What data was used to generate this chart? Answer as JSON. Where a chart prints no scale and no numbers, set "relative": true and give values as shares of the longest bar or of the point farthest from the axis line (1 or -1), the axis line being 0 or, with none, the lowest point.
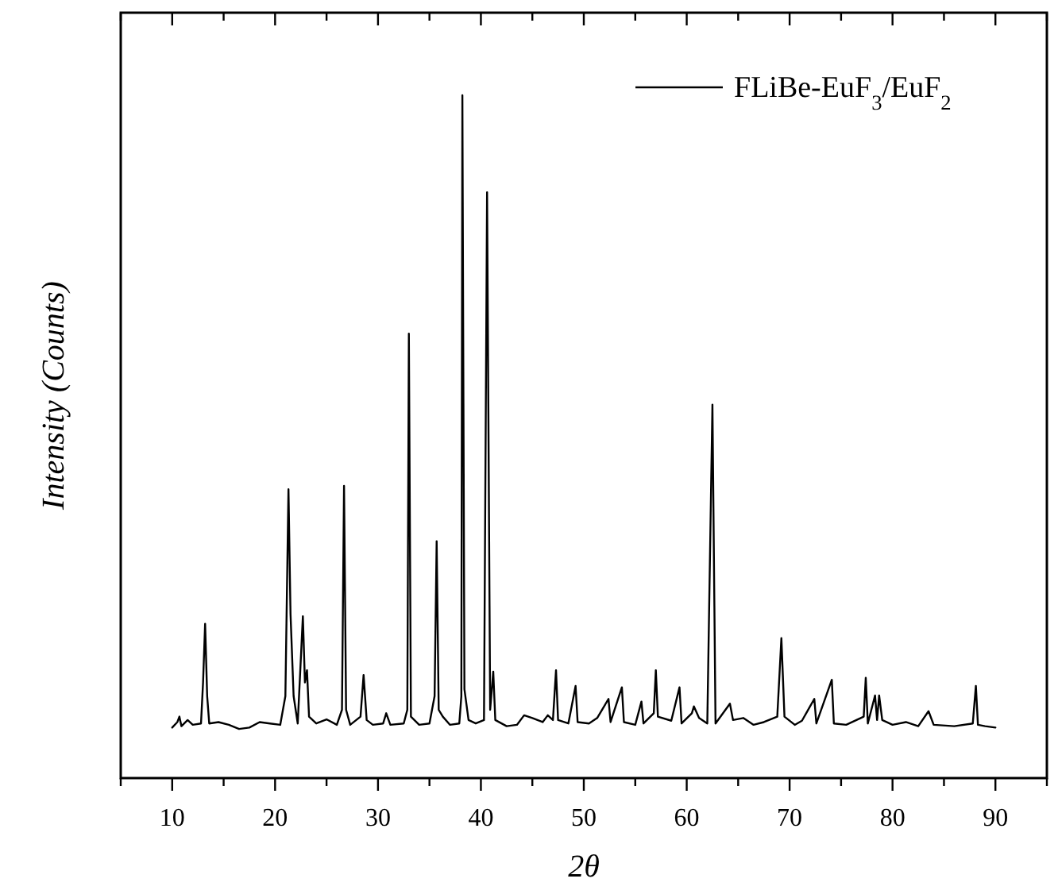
{
  "chart_data": {
    "type": "line",
    "relative": true,
    "xlabel": "2θ",
    "ylabel": "Intensity (Counts)",
    "legend": "top right",
    "xlim": [
      5,
      95
    ],
    "xticks": [
      {
        "value": 5,
        "label": null
      },
      10,
      {
        "value": 15,
        "label": null
      },
      20,
      {
        "value": 25,
        "label": null
      },
      30,
      {
        "value": 35,
        "label": null
      },
      40,
      {
        "value": 45,
        "label": null
      },
      50,
      {
        "value": 55,
        "label": null
      },
      60,
      {
        "value": 65,
        "label": null
      },
      70,
      {
        "value": 75,
        "label": null
      },
      80,
      {
        "value": 85,
        "label": null
      },
      90,
      {
        "value": 95,
        "label": null
      }
    ],
    "series": [
      {
        "name": "FLiBe-EuF$_{3}$/EuF$_{2}$",
        "color": "#000000",
        "x": [
          10,
          10.5,
          10.7,
          10.9,
          11.5,
          12,
          12.8,
          13.0,
          13.2,
          13.4,
          13.6,
          14.5,
          15.5,
          16.5,
          17.5,
          18.5,
          19.5,
          20.5,
          21.0,
          21.3,
          21.5,
          21.8,
          22.2,
          22.7,
          22.9,
          23.1,
          23.3,
          24,
          25,
          26,
          26.5,
          26.7,
          26.9,
          27.3,
          28.3,
          28.6,
          28.9,
          29.5,
          30.5,
          30.8,
          31.2,
          32.5,
          32.85,
          33.0,
          33.2,
          34,
          35,
          35.5,
          35.7,
          35.9,
          36.3,
          37,
          37.9,
          38.1,
          38.2,
          38.4,
          38.8,
          39.5,
          40.3,
          40.6,
          40.9,
          41.2,
          41.4,
          42.5,
          43.5,
          44.2,
          45,
          46,
          46.5,
          47.0,
          47.3,
          47.5,
          48.5,
          49.2,
          49.4,
          50.5,
          51.3,
          52.4,
          52.6,
          53.7,
          53.9,
          55,
          55.6,
          55.8,
          56.8,
          57.0,
          57.2,
          58.5,
          59.3,
          59.5,
          60.5,
          60.7,
          61.2,
          62.0,
          62.5,
          62.8,
          64.2,
          64.5,
          65.5,
          66.5,
          67.5,
          68.8,
          69.2,
          69.5,
          70.5,
          71.2,
          72.4,
          72.6,
          74.1,
          74.3,
          75.5,
          77.2,
          77.4,
          77.6,
          78.3,
          78.5,
          78.7,
          79,
          80,
          81.3,
          82.5,
          83.5,
          84,
          86,
          87.8,
          88.1,
          88.3,
          89,
          90
        ],
        "values": [
          0.074,
          0.082,
          0.09,
          0.076,
          0.085,
          0.078,
          0.08,
          0.14,
          0.226,
          0.12,
          0.08,
          0.082,
          0.078,
          0.072,
          0.074,
          0.082,
          0.08,
          0.078,
          0.12,
          0.423,
          0.24,
          0.12,
          0.08,
          0.237,
          0.14,
          0.158,
          0.09,
          0.08,
          0.086,
          0.078,
          0.1,
          0.428,
          0.1,
          0.078,
          0.09,
          0.151,
          0.085,
          0.078,
          0.08,
          0.095,
          0.078,
          0.08,
          0.1,
          0.651,
          0.09,
          0.078,
          0.08,
          0.12,
          0.347,
          0.1,
          0.09,
          0.078,
          0.08,
          0.12,
          1.0,
          0.13,
          0.085,
          0.08,
          0.085,
          0.858,
          0.1,
          0.156,
          0.085,
          0.076,
          0.078,
          0.092,
          0.088,
          0.082,
          0.092,
          0.085,
          0.158,
          0.085,
          0.08,
          0.135,
          0.082,
          0.08,
          0.088,
          0.116,
          0.082,
          0.133,
          0.082,
          0.078,
          0.112,
          0.08,
          0.095,
          0.158,
          0.09,
          0.084,
          0.133,
          0.08,
          0.095,
          0.105,
          0.088,
          0.08,
          0.547,
          0.08,
          0.109,
          0.085,
          0.088,
          0.078,
          0.082,
          0.09,
          0.205,
          0.09,
          0.078,
          0.084,
          0.116,
          0.08,
          0.144,
          0.08,
          0.078,
          0.09,
          0.147,
          0.08,
          0.121,
          0.085,
          0.121,
          0.085,
          0.078,
          0.082,
          0.076,
          0.098,
          0.078,
          0.076,
          0.08,
          0.135,
          0.078,
          0.076,
          0.074
        ]
      }
    ]
  }
}
